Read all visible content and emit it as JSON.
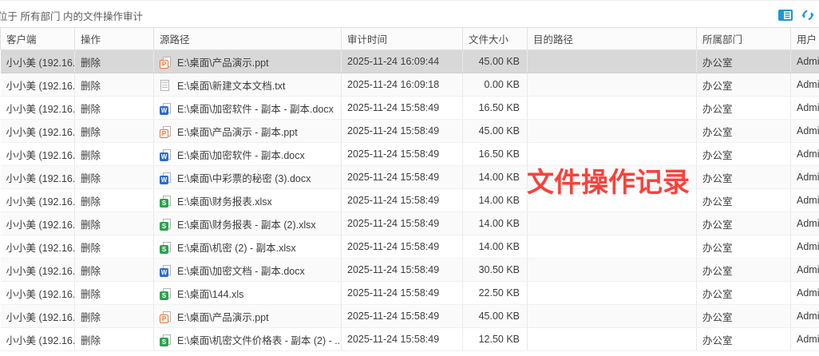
{
  "titlebar": {
    "title": "位于 所有部门 内的文件操作审计"
  },
  "annotation": {
    "text": "文件操作记录",
    "color": "#f9423a"
  },
  "colors": {
    "accent_blue": "#1e96d2",
    "selected_row": "#d8d8d8",
    "ppt_orange": "#ed7031",
    "docx_blue": "#2b6bd0",
    "xlsx_green": "#2fa24e"
  },
  "table": {
    "columns": [
      "客户端",
      "操作",
      "源路径",
      "审计时间",
      "文件大小",
      "目的路径",
      "所属部门",
      "用户"
    ],
    "rows": [
      {
        "client": "小小美 (192.16...",
        "op": "删除",
        "file_type": "ppt",
        "path": "E:\\桌面\\产品演示.ppt",
        "time": "2025-11-24 16:09:44",
        "size": "45.00 KB",
        "dest": "",
        "dept": "办公室",
        "user": "Admi",
        "selected": true
      },
      {
        "client": "小小美 (192.16...",
        "op": "删除",
        "file_type": "txt",
        "path": "E:\\桌面\\新建文本文档.txt",
        "time": "2025-11-24 16:09:18",
        "size": "0.00 KB",
        "dest": "",
        "dept": "办公室",
        "user": "Admi",
        "selected": false
      },
      {
        "client": "小小美 (192.16...",
        "op": "删除",
        "file_type": "docx",
        "path": "E:\\桌面\\加密软件 - 副本 - 副本.docx",
        "time": "2025-11-24 15:58:49",
        "size": "16.50 KB",
        "dest": "",
        "dept": "办公室",
        "user": "Admi",
        "selected": false
      },
      {
        "client": "小小美 (192.16...",
        "op": "删除",
        "file_type": "ppt",
        "path": "E:\\桌面\\产品演示 - 副本.ppt",
        "time": "2025-11-24 15:58:49",
        "size": "45.00 KB",
        "dest": "",
        "dept": "办公室",
        "user": "Admi",
        "selected": false
      },
      {
        "client": "小小美 (192.16...",
        "op": "删除",
        "file_type": "docx",
        "path": "E:\\桌面\\加密软件 - 副本.docx",
        "time": "2025-11-24 15:58:49",
        "size": "16.50 KB",
        "dest": "",
        "dept": "办公室",
        "user": "Admi",
        "selected": false
      },
      {
        "client": "小小美 (192.16...",
        "op": "删除",
        "file_type": "docx",
        "path": "E:\\桌面\\中彩票的秘密 (3).docx",
        "time": "2025-11-24 15:58:49",
        "size": "14.00 KB",
        "dest": "",
        "dept": "办公室",
        "user": "Admi",
        "selected": false
      },
      {
        "client": "小小美 (192.16...",
        "op": "删除",
        "file_type": "xlsx",
        "path": "E:\\桌面\\财务报表.xlsx",
        "time": "2025-11-24 15:58:49",
        "size": "14.00 KB",
        "dest": "",
        "dept": "办公室",
        "user": "Admi",
        "selected": false
      },
      {
        "client": "小小美 (192.16...",
        "op": "删除",
        "file_type": "xlsx",
        "path": "E:\\桌面\\财务报表 - 副本 (2).xlsx",
        "time": "2025-11-24 15:58:49",
        "size": "14.00 KB",
        "dest": "",
        "dept": "办公室",
        "user": "Admi",
        "selected": false
      },
      {
        "client": "小小美 (192.16...",
        "op": "删除",
        "file_type": "xlsx",
        "path": "E:\\桌面\\机密 (2)  - 副本.xlsx",
        "time": "2025-11-24 15:58:49",
        "size": "14.00 KB",
        "dest": "",
        "dept": "办公室",
        "user": "Admi",
        "selected": false
      },
      {
        "client": "小小美 (192.16...",
        "op": "删除",
        "file_type": "docx",
        "path": "E:\\桌面\\加密文档 - 副本.docx",
        "time": "2025-11-24 15:58:49",
        "size": "30.50 KB",
        "dest": "",
        "dept": "办公室",
        "user": "Admi",
        "selected": false
      },
      {
        "client": "小小美 (192.16...",
        "op": "删除",
        "file_type": "xlsx",
        "path": "E:\\桌面\\144.xls",
        "time": "2025-11-24 15:58:49",
        "size": "22.50 KB",
        "dest": "",
        "dept": "办公室",
        "user": "Admi",
        "selected": false
      },
      {
        "client": "小小美 (192.16...",
        "op": "删除",
        "file_type": "ppt",
        "path": "E:\\桌面\\产品演示.ppt",
        "time": "2025-11-24 15:58:49",
        "size": "45.00 KB",
        "dest": "",
        "dept": "办公室",
        "user": "Admi",
        "selected": false
      },
      {
        "client": "小小美 (192.16...",
        "op": "删除",
        "file_type": "xlsx",
        "path": "E:\\桌面\\机密文件价格表 - 副本 (2) - ...",
        "time": "2025-11-24 15:58:49",
        "size": "12.50 KB",
        "dest": "",
        "dept": "办公室",
        "user": "Admi",
        "selected": false
      }
    ]
  }
}
